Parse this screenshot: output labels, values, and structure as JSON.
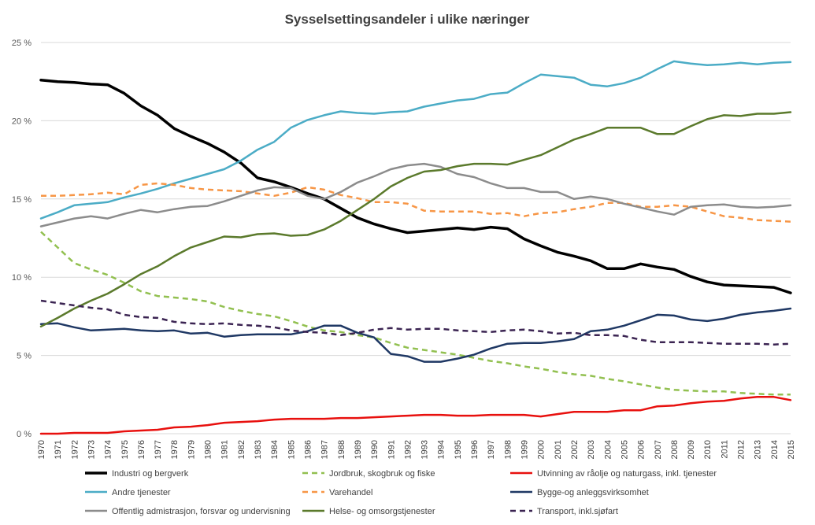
{
  "chart_data": {
    "type": "line",
    "title": "Sysselsettingsandeler i ulike næringer",
    "xlabel": "",
    "ylabel": "",
    "ylim": [
      0,
      25
    ],
    "yticks": [
      0,
      5,
      10,
      15,
      20,
      25
    ],
    "ytick_labels": [
      "0 %",
      "5 %",
      "10 %",
      "15 %",
      "20 %",
      "25 %"
    ],
    "grid": "horizontal",
    "legend_position": "bottom",
    "x": [
      1970,
      1971,
      1972,
      1973,
      1974,
      1975,
      1976,
      1977,
      1978,
      1979,
      1980,
      1981,
      1982,
      1983,
      1984,
      1985,
      1986,
      1987,
      1988,
      1989,
      1990,
      1991,
      1992,
      1993,
      1994,
      1995,
      1996,
      1997,
      1998,
      1999,
      2000,
      2001,
      2002,
      2003,
      2004,
      2005,
      2006,
      2007,
      2008,
      2009,
      2010,
      2011,
      2012,
      2013,
      2014,
      2015
    ],
    "series": [
      {
        "name": "Industri og bergverk",
        "color": "#000000",
        "dash": "solid",
        "width": 3.5,
        "values": [
          22.6,
          22.5,
          22.45,
          22.35,
          22.3,
          21.75,
          20.95,
          20.35,
          19.5,
          19.0,
          18.55,
          18.0,
          17.3,
          16.35,
          16.1,
          15.75,
          15.35,
          15.0,
          14.4,
          13.8,
          13.4,
          13.1,
          12.85,
          12.95,
          13.05,
          13.15,
          13.05,
          13.2,
          13.1,
          12.45,
          12.0,
          11.6,
          11.35,
          11.05,
          10.55,
          10.55,
          10.85,
          10.65,
          10.5,
          10.05,
          9.7,
          9.5,
          9.45,
          9.4,
          9.35,
          9.0
        ]
      },
      {
        "name": "Jordbruk, skogbruk og fiske",
        "color": "#92c050",
        "dash": "dashed",
        "width": 2.5,
        "values": [
          12.9,
          11.9,
          10.9,
          10.5,
          10.15,
          9.65,
          9.1,
          8.8,
          8.7,
          8.6,
          8.45,
          8.1,
          7.85,
          7.65,
          7.5,
          7.2,
          6.85,
          6.6,
          6.5,
          6.3,
          6.15,
          5.8,
          5.5,
          5.35,
          5.2,
          5.05,
          4.85,
          4.65,
          4.5,
          4.3,
          4.15,
          3.95,
          3.8,
          3.7,
          3.5,
          3.35,
          3.15,
          2.95,
          2.8,
          2.75,
          2.7,
          2.7,
          2.6,
          2.55,
          2.5,
          2.5
        ]
      },
      {
        "name": "Utvinning av råolje og naturgass, inkl. tjenester",
        "color": "#e8100e",
        "dash": "solid",
        "width": 2.5,
        "values": [
          0.0,
          0.0,
          0.05,
          0.05,
          0.05,
          0.15,
          0.2,
          0.25,
          0.4,
          0.45,
          0.55,
          0.7,
          0.75,
          0.8,
          0.9,
          0.95,
          0.95,
          0.95,
          1.0,
          1.0,
          1.05,
          1.1,
          1.15,
          1.2,
          1.2,
          1.15,
          1.15,
          1.2,
          1.2,
          1.2,
          1.1,
          1.25,
          1.4,
          1.4,
          1.4,
          1.5,
          1.5,
          1.75,
          1.8,
          1.95,
          2.05,
          2.1,
          2.25,
          2.35,
          2.35,
          2.15
        ]
      },
      {
        "name": "Andre tjenester",
        "color": "#4bacc6",
        "dash": "solid",
        "width": 2.5,
        "values": [
          13.75,
          14.15,
          14.6,
          14.7,
          14.8,
          15.1,
          15.35,
          15.65,
          16.0,
          16.3,
          16.6,
          16.9,
          17.45,
          18.15,
          18.65,
          19.55,
          20.05,
          20.35,
          20.6,
          20.5,
          20.45,
          20.55,
          20.6,
          20.9,
          21.1,
          21.3,
          21.4,
          21.7,
          21.8,
          22.4,
          22.95,
          22.85,
          22.75,
          22.3,
          22.2,
          22.4,
          22.75,
          23.3,
          23.8,
          23.65,
          23.55,
          23.6,
          23.7,
          23.6,
          23.7,
          23.75
        ]
      },
      {
        "name": "Varehandel",
        "color": "#f79646",
        "dash": "dashed",
        "width": 2.5,
        "values": [
          15.2,
          15.2,
          15.25,
          15.3,
          15.4,
          15.3,
          15.9,
          16.0,
          15.9,
          15.7,
          15.6,
          15.55,
          15.5,
          15.35,
          15.2,
          15.4,
          15.75,
          15.6,
          15.25,
          15.05,
          14.8,
          14.8,
          14.7,
          14.25,
          14.2,
          14.2,
          14.2,
          14.05,
          14.1,
          13.9,
          14.1,
          14.15,
          14.35,
          14.5,
          14.75,
          14.75,
          14.5,
          14.5,
          14.6,
          14.5,
          14.2,
          13.9,
          13.8,
          13.65,
          13.6,
          13.55
        ]
      },
      {
        "name": "Bygge-og anleggsvirksomhet",
        "color": "#1f3864",
        "dash": "solid",
        "width": 2.5,
        "values": [
          7.0,
          7.05,
          6.8,
          6.6,
          6.65,
          6.7,
          6.6,
          6.55,
          6.6,
          6.4,
          6.45,
          6.2,
          6.3,
          6.35,
          6.35,
          6.35,
          6.55,
          6.9,
          6.9,
          6.45,
          6.15,
          5.1,
          4.95,
          4.6,
          4.6,
          4.8,
          5.05,
          5.45,
          5.75,
          5.8,
          5.8,
          5.9,
          6.05,
          6.55,
          6.65,
          6.9,
          7.25,
          7.6,
          7.55,
          7.3,
          7.2,
          7.35,
          7.6,
          7.75,
          7.85,
          8.0
        ]
      },
      {
        "name": "Offentlig admistrasjon, forsvar og undervisning",
        "color": "#8c8c8c",
        "dash": "solid",
        "width": 2.5,
        "values": [
          13.25,
          13.5,
          13.75,
          13.9,
          13.75,
          14.05,
          14.3,
          14.15,
          14.35,
          14.5,
          14.55,
          14.85,
          15.2,
          15.55,
          15.75,
          15.7,
          15.2,
          15.0,
          15.45,
          16.05,
          16.45,
          16.9,
          17.15,
          17.25,
          17.05,
          16.6,
          16.4,
          16.0,
          15.7,
          15.7,
          15.45,
          15.45,
          15.0,
          15.15,
          15.0,
          14.7,
          14.45,
          14.2,
          14.0,
          14.5,
          14.6,
          14.65,
          14.5,
          14.45,
          14.5,
          14.6
        ]
      },
      {
        "name": "Helse- og omsorgstjenester",
        "color": "#5b7a2c",
        "dash": "solid",
        "width": 2.5,
        "values": [
          6.85,
          7.4,
          8.0,
          8.5,
          8.95,
          9.55,
          10.2,
          10.7,
          11.35,
          11.9,
          12.25,
          12.6,
          12.55,
          12.75,
          12.8,
          12.65,
          12.7,
          13.05,
          13.6,
          14.3,
          15.0,
          15.8,
          16.35,
          16.75,
          16.85,
          17.1,
          17.25,
          17.25,
          17.2,
          17.5,
          17.8,
          18.3,
          18.8,
          19.15,
          19.55,
          19.55,
          19.55,
          19.15,
          19.15,
          19.65,
          20.1,
          20.35,
          20.3,
          20.45,
          20.45,
          20.55
        ]
      },
      {
        "name": "Transport, inkl.sjøfart",
        "color": "#3b2452",
        "dash": "dashed",
        "width": 2.5,
        "values": [
          8.5,
          8.35,
          8.2,
          8.05,
          7.95,
          7.6,
          7.45,
          7.4,
          7.15,
          7.05,
          7.0,
          7.05,
          6.95,
          6.9,
          6.8,
          6.6,
          6.5,
          6.45,
          6.3,
          6.45,
          6.65,
          6.75,
          6.65,
          6.7,
          6.7,
          6.6,
          6.55,
          6.5,
          6.6,
          6.65,
          6.55,
          6.4,
          6.45,
          6.3,
          6.3,
          6.25,
          6.0,
          5.85,
          5.85,
          5.85,
          5.8,
          5.75,
          5.75,
          5.75,
          5.7,
          5.75
        ]
      }
    ]
  }
}
